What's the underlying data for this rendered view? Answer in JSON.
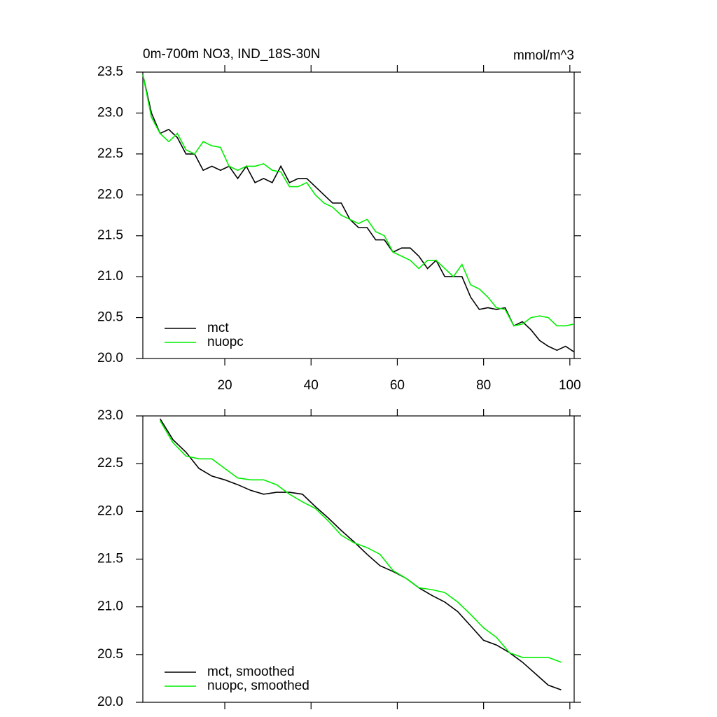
{
  "chart_data": [
    {
      "type": "line",
      "title": "0m-700m NO3, IND_18S-30N",
      "units": "mmol/m^3",
      "x": [
        1,
        3,
        5,
        7,
        9,
        11,
        13,
        15,
        17,
        19,
        21,
        23,
        25,
        27,
        29,
        31,
        33,
        35,
        37,
        39,
        41,
        43,
        45,
        47,
        49,
        51,
        53,
        55,
        57,
        59,
        61,
        63,
        65,
        67,
        69,
        71,
        73,
        75,
        77,
        79,
        81,
        83,
        85,
        87,
        89,
        91,
        93,
        95,
        97,
        99,
        101
      ],
      "series": [
        {
          "name": "mct",
          "color": "#000000",
          "values": [
            23.47,
            23.0,
            22.75,
            22.8,
            22.7,
            22.5,
            22.5,
            22.3,
            22.35,
            22.3,
            22.35,
            22.2,
            22.35,
            22.15,
            22.2,
            22.15,
            22.35,
            22.15,
            22.2,
            22.2,
            22.1,
            22.0,
            21.9,
            21.9,
            21.7,
            21.6,
            21.6,
            21.45,
            21.45,
            21.3,
            21.35,
            21.35,
            21.25,
            21.1,
            21.2,
            21.0,
            21.0,
            21.0,
            20.75,
            20.6,
            20.62,
            20.6,
            20.62,
            20.4,
            20.45,
            20.35,
            20.22,
            20.15,
            20.1,
            20.15,
            20.08
          ]
        },
        {
          "name": "nuopc",
          "color": "#00ee00",
          "values": [
            23.47,
            22.95,
            22.75,
            22.65,
            22.75,
            22.55,
            22.5,
            22.65,
            22.6,
            22.58,
            22.35,
            22.3,
            22.35,
            22.35,
            22.38,
            22.3,
            22.28,
            22.1,
            22.1,
            22.15,
            22.0,
            21.9,
            21.85,
            21.75,
            21.7,
            21.65,
            21.7,
            21.55,
            21.5,
            21.3,
            21.25,
            21.2,
            21.1,
            21.2,
            21.2,
            21.1,
            21.0,
            21.15,
            20.9,
            20.85,
            20.75,
            20.62,
            20.6,
            20.4,
            20.42,
            20.5,
            20.52,
            20.5,
            20.4,
            20.4,
            20.42
          ]
        }
      ],
      "xlim": [
        1,
        101
      ],
      "xticks": [
        20,
        40,
        60,
        80,
        100
      ],
      "show_xtick_labels": true,
      "ylim": [
        20.0,
        23.5
      ],
      "yticks": [
        {
          "value": 20.0,
          "label": "20.0"
        },
        20.5,
        {
          "value": 21.0,
          "label": "21.0"
        },
        21.5,
        {
          "value": 22.0,
          "label": "22.0"
        },
        22.5,
        {
          "value": 23.0,
          "label": "23.0"
        },
        23.5
      ],
      "legend": "lower left"
    },
    {
      "type": "line",
      "x": [
        5,
        8,
        11,
        14,
        17,
        20,
        23,
        26,
        29,
        32,
        35,
        38,
        41,
        44,
        47,
        50,
        53,
        56,
        59,
        62,
        65,
        68,
        71,
        74,
        77,
        80,
        83,
        86,
        89,
        92,
        95,
        98
      ],
      "series": [
        {
          "name": "mct, smoothed",
          "color": "#000000",
          "values": [
            22.97,
            22.75,
            22.62,
            22.45,
            22.37,
            22.33,
            22.28,
            22.22,
            22.18,
            22.2,
            22.2,
            22.18,
            22.05,
            21.93,
            21.8,
            21.68,
            21.55,
            21.43,
            21.37,
            21.3,
            21.2,
            21.12,
            21.05,
            20.95,
            20.8,
            20.65,
            20.6,
            20.52,
            20.42,
            20.3,
            20.18,
            20.13
          ]
        },
        {
          "name": "nuopc, smoothed",
          "color": "#00ee00",
          "values": [
            22.95,
            22.72,
            22.58,
            22.55,
            22.55,
            22.45,
            22.35,
            22.33,
            22.33,
            22.28,
            22.18,
            22.1,
            22.03,
            21.9,
            21.75,
            21.67,
            21.62,
            21.55,
            21.38,
            21.3,
            21.2,
            21.18,
            21.15,
            21.05,
            20.92,
            20.78,
            20.68,
            20.52,
            20.47,
            20.47,
            20.47,
            20.42
          ]
        }
      ],
      "xlim": [
        1,
        101
      ],
      "xticks": [
        20,
        40,
        60,
        80,
        100
      ],
      "show_xtick_labels": false,
      "ylim": [
        20.0,
        23.0
      ],
      "yticks": [
        {
          "value": 20.0,
          "label": "20.0"
        },
        20.5,
        {
          "value": 21.0,
          "label": "21.0"
        },
        21.5,
        {
          "value": 22.0,
          "label": "22.0"
        },
        22.5,
        {
          "value": 23.0,
          "label": "23.0"
        }
      ],
      "legend": "lower left"
    }
  ]
}
